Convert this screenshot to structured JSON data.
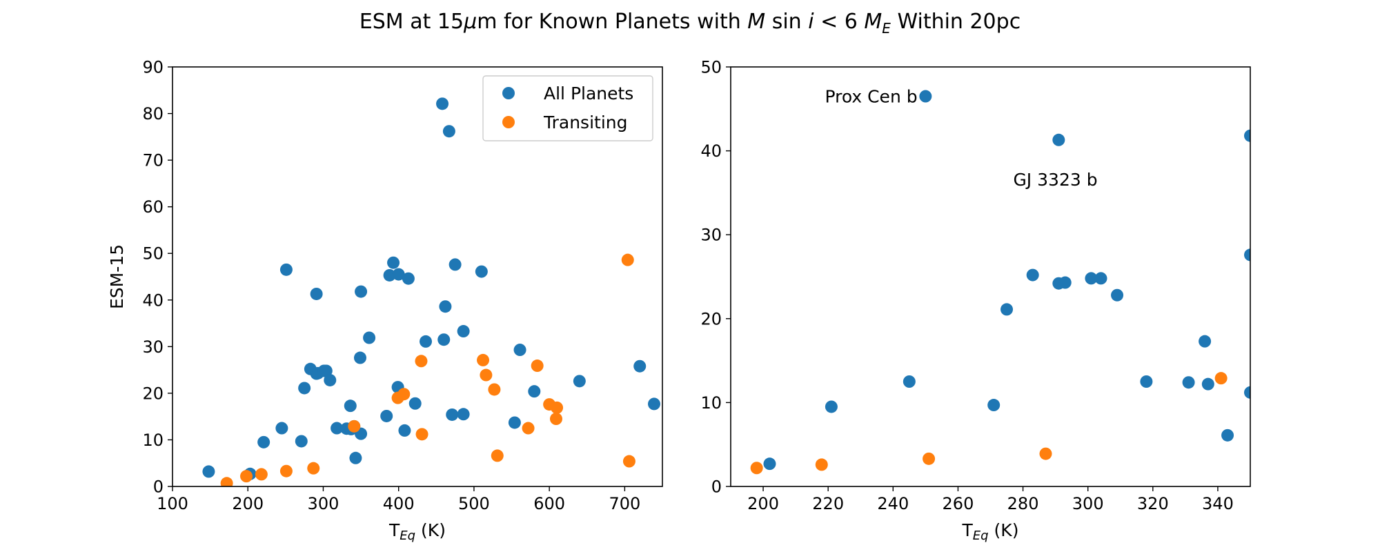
{
  "figure": {
    "title_parts": {
      "pre": "ESM at 15",
      "mu": "μ",
      "mid1": "m for Known Planets with ",
      "m": "M",
      "mid2": " sin ",
      "i": "i",
      "mid3": " < 6 ",
      "me": "M",
      "me_sub": "E",
      "post": " Within 20pc"
    }
  },
  "colors": {
    "all_planets": "#1f77b4",
    "transiting": "#ff7f0e"
  },
  "chart_data": [
    {
      "type": "scatter",
      "panel": "left",
      "xlabel_main": "T",
      "xlabel_sub": "Eq",
      "xlabel_unit": " (K)",
      "ylabel": "ESM-15",
      "xlim": [
        100,
        750
      ],
      "ylim": [
        0,
        90
      ],
      "xticks": [
        100,
        200,
        300,
        400,
        500,
        600,
        700
      ],
      "yticks": [
        0,
        10,
        20,
        30,
        40,
        50,
        60,
        70,
        80,
        90
      ],
      "legend": {
        "placement": "top-right",
        "entries": [
          "All Planets",
          "Transiting"
        ]
      },
      "series": [
        {
          "name": "All Planets",
          "color": "#1f77b4",
          "points": [
            [
              148,
              3.2
            ],
            [
              203,
              2.7
            ],
            [
              221,
              9.5
            ],
            [
              245,
              12.5
            ],
            [
              251,
              46.5
            ],
            [
              271,
              9.7
            ],
            [
              275,
              21.1
            ],
            [
              283,
              25.2
            ],
            [
              291,
              41.3
            ],
            [
              291,
              24.2
            ],
            [
              293,
              24.3
            ],
            [
              301,
              24.8
            ],
            [
              304,
              24.8
            ],
            [
              309,
              22.8
            ],
            [
              318,
              12.5
            ],
            [
              331,
              12.4
            ],
            [
              336,
              17.3
            ],
            [
              337,
              12.3
            ],
            [
              341,
              12.9
            ],
            [
              343,
              6.1
            ],
            [
              349,
              27.6
            ],
            [
              350,
              11.3
            ],
            [
              350,
              41.8
            ],
            [
              361,
              31.9
            ],
            [
              384,
              15.1
            ],
            [
              388,
              45.3
            ],
            [
              393,
              48.0
            ],
            [
              399,
              21.3
            ],
            [
              400,
              45.5
            ],
            [
              408,
              12.0
            ],
            [
              413,
              44.6
            ],
            [
              422,
              17.8
            ],
            [
              436,
              31.1
            ],
            [
              458,
              82.1
            ],
            [
              460,
              31.5
            ],
            [
              462,
              38.6
            ],
            [
              467,
              76.2
            ],
            [
              471,
              15.4
            ],
            [
              475,
              47.6
            ],
            [
              486,
              33.3
            ],
            [
              486,
              15.5
            ],
            [
              510,
              46.1
            ],
            [
              554,
              13.7
            ],
            [
              561,
              29.3
            ],
            [
              580,
              20.4
            ],
            [
              640,
              22.6
            ],
            [
              720,
              25.8
            ],
            [
              739,
              17.7
            ]
          ]
        },
        {
          "name": "Transiting",
          "color": "#ff7f0e",
          "points": [
            [
              172,
              0.7
            ],
            [
              198,
              2.2
            ],
            [
              218,
              2.6
            ],
            [
              251,
              3.3
            ],
            [
              287,
              3.9
            ],
            [
              341,
              12.9
            ],
            [
              399,
              19.0
            ],
            [
              407,
              19.8
            ],
            [
              430,
              26.9
            ],
            [
              431,
              11.2
            ],
            [
              512,
              27.1
            ],
            [
              516,
              23.9
            ],
            [
              527,
              20.8
            ],
            [
              531,
              6.6
            ],
            [
              572,
              12.5
            ],
            [
              584,
              25.9
            ],
            [
              600,
              17.6
            ],
            [
              609,
              14.5
            ],
            [
              610,
              16.9
            ],
            [
              704,
              48.6
            ],
            [
              706,
              5.4
            ]
          ]
        }
      ]
    },
    {
      "type": "scatter",
      "panel": "right",
      "xlabel_main": "T",
      "xlabel_sub": "Eq",
      "xlabel_unit": " (K)",
      "ylabel": "",
      "xlim": [
        190,
        350
      ],
      "ylim": [
        0,
        50
      ],
      "xticks": [
        200,
        220,
        240,
        260,
        280,
        300,
        320,
        340
      ],
      "yticks": [
        0,
        10,
        20,
        30,
        40,
        50
      ],
      "annotations": [
        {
          "text": "Prox Cen b",
          "x": 250,
          "y": 46.5,
          "anchor": "end",
          "dx": -2.5
        },
        {
          "text": "GJ 3323 b",
          "x": 277,
          "y": 36.6,
          "anchor": "start",
          "dx": 0
        }
      ],
      "series": [
        {
          "name": "All Planets",
          "color": "#1f77b4",
          "points": [
            [
              202,
              2.7
            ],
            [
              221,
              9.5
            ],
            [
              245,
              12.5
            ],
            [
              250,
              46.5
            ],
            [
              271,
              9.7
            ],
            [
              275,
              21.1
            ],
            [
              283,
              25.2
            ],
            [
              291,
              41.3
            ],
            [
              291,
              24.2
            ],
            [
              293,
              24.3
            ],
            [
              301,
              24.8
            ],
            [
              304,
              24.8
            ],
            [
              309,
              22.8
            ],
            [
              318,
              12.5
            ],
            [
              331,
              12.4
            ],
            [
              336,
              17.3
            ],
            [
              337,
              12.2
            ],
            [
              343,
              6.1
            ],
            [
              350,
              41.8
            ],
            [
              350,
              27.6
            ],
            [
              350,
              11.2
            ]
          ]
        },
        {
          "name": "Transiting",
          "color": "#ff7f0e",
          "points": [
            [
              198,
              2.2
            ],
            [
              218,
              2.6
            ],
            [
              251,
              3.3
            ],
            [
              287,
              3.9
            ],
            [
              341,
              12.9
            ]
          ]
        }
      ]
    }
  ]
}
